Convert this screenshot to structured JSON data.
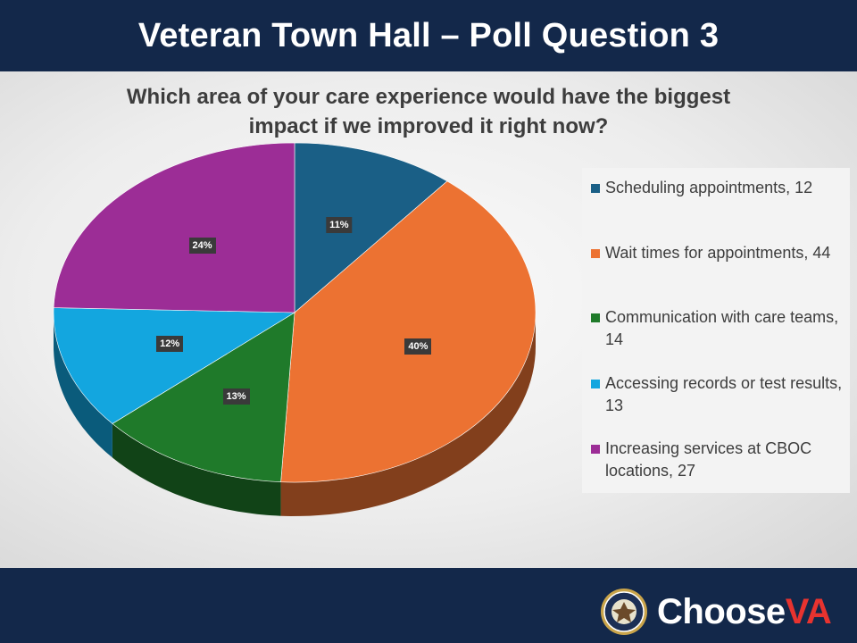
{
  "header": {
    "title": "Veteran Town Hall – Poll Question 3"
  },
  "chart_data": {
    "type": "pie",
    "title": "Which area of your care experience would have the biggest impact if we improved it right now?",
    "categories": [
      "Scheduling appointments",
      "Wait times for appointments",
      "Communication with care teams",
      "Accessing records or test results",
      "Increasing services at CBOC locations"
    ],
    "values": [
      12,
      44,
      14,
      13,
      27
    ],
    "percent_labels": [
      "11%",
      "40%",
      "13%",
      "12%",
      "24%"
    ],
    "colors": [
      "#1a5f86",
      "#ec7232",
      "#1f7a2a",
      "#13a6df",
      "#9c2d96"
    ],
    "legend_position": "right",
    "style": "3d"
  },
  "legend": {
    "items": [
      {
        "text": "Scheduling appointments, 12"
      },
      {
        "text": "Wait times for appointments, 44"
      },
      {
        "text": "Communication with care teams, 14"
      },
      {
        "text": "Accessing records or test results, 13"
      },
      {
        "text": "Increasing services at CBOC locations, 27"
      }
    ]
  },
  "footer": {
    "logo_text": "Choose",
    "logo_mark": "VA"
  }
}
